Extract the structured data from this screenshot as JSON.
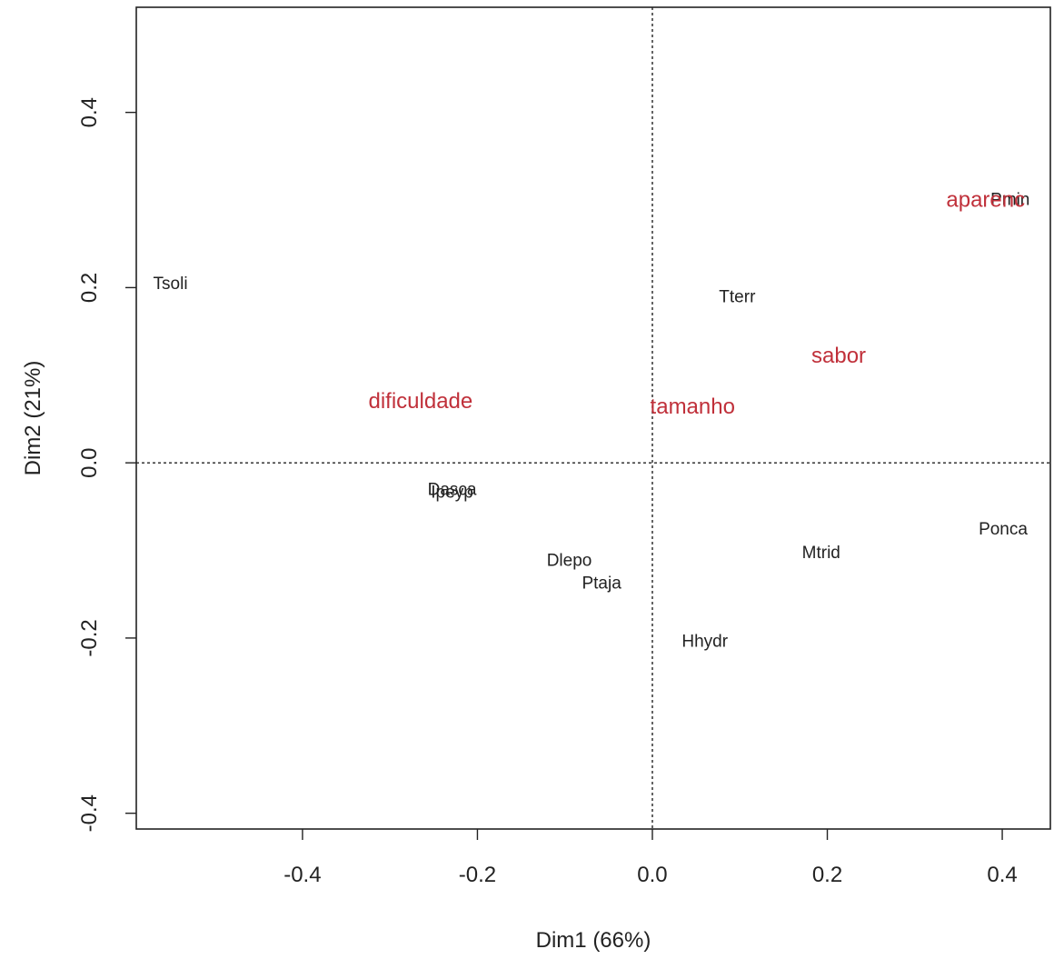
{
  "chart_data": {
    "type": "scatter",
    "title": "",
    "xlabel": "Dim1 (66%)",
    "ylabel": "Dim2 (21%)",
    "xlim": [
      -0.59,
      0.455
    ],
    "ylim": [
      -0.418,
      0.52
    ],
    "x_ticks": [
      {
        "value": -0.4,
        "label": "-0.4"
      },
      {
        "value": -0.2,
        "label": "-0.2"
      },
      {
        "value": 0.0,
        "label": "0.0"
      },
      {
        "value": 0.2,
        "label": "0.2"
      },
      {
        "value": 0.4,
        "label": "0.4"
      }
    ],
    "y_ticks": [
      {
        "value": -0.4,
        "label": "-0.4"
      },
      {
        "value": -0.2,
        "label": "-0.2"
      },
      {
        "value": 0.0,
        "label": "0.0"
      },
      {
        "value": 0.2,
        "label": "0.2"
      },
      {
        "value": 0.4,
        "label": "0.4"
      }
    ],
    "grid": false,
    "reference_lines": {
      "x": 0.0,
      "y": 0.0,
      "style": "dotted"
    },
    "series": [
      {
        "color": "#222222",
        "points": [
          {
            "label": "Tsoli",
            "x": -0.551,
            "y": 0.204
          },
          {
            "label": "Tterr",
            "x": 0.097,
            "y": 0.189
          },
          {
            "label": "Pmin",
            "x": 0.409,
            "y": 0.3
          },
          {
            "label": "Dasca",
            "x": -0.229,
            "y": -0.031
          },
          {
            "label": "Ipeyp",
            "x": -0.229,
            "y": -0.034
          },
          {
            "label": "Dlepo",
            "x": -0.095,
            "y": -0.112
          },
          {
            "label": "Ptaja",
            "x": -0.058,
            "y": -0.138
          },
          {
            "label": "Mtrid",
            "x": 0.193,
            "y": -0.103
          },
          {
            "label": "Ponca",
            "x": 0.401,
            "y": -0.076
          },
          {
            "label": "Hhydr",
            "x": 0.06,
            "y": -0.204
          }
        ]
      },
      {
        "color": "#c0303a",
        "points": [
          {
            "label": "dificuldade",
            "x": -0.265,
            "y": 0.07
          },
          {
            "label": "tamanho",
            "x": 0.046,
            "y": 0.064
          },
          {
            "label": "sabor",
            "x": 0.213,
            "y": 0.122
          },
          {
            "label": "aparenc",
            "x": 0.381,
            "y": 0.3
          }
        ]
      }
    ]
  }
}
